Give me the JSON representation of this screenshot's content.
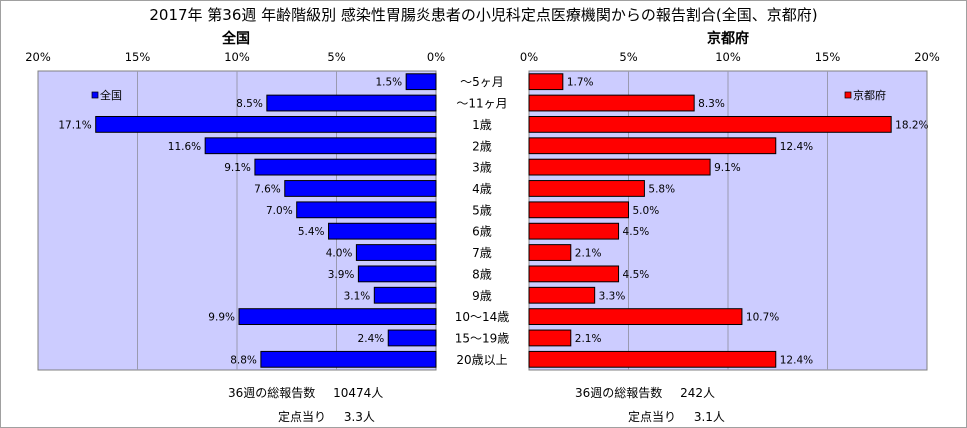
{
  "title": "2017年 第36週 年齢階級別 感染性胃腸炎患者の小児科定点医療機関からの報告割合(全国、京都府)",
  "colors": {
    "zenkoku": "#0000ff",
    "kyoto": "#ff0000",
    "plot_bg": "#ccccff",
    "edge": "#000000"
  },
  "chart_data": [
    {
      "type": "bar",
      "orientation": "horizontal",
      "title": "全国",
      "legend": "全国",
      "legend_position": "top-left",
      "xlim": [
        0,
        20
      ],
      "x_direction": "reversed",
      "ticks": [
        "20%",
        "15%",
        "10%",
        "5%",
        "0%"
      ],
      "categories": [
        "～5ヶ月",
        "～11ヶ月",
        "1歳",
        "2歳",
        "3歳",
        "4歳",
        "5歳",
        "6歳",
        "7歳",
        "8歳",
        "9歳",
        "10～14歳",
        "15～19歳",
        "20歳以上"
      ],
      "values": [
        1.5,
        8.5,
        17.1,
        11.6,
        9.1,
        7.6,
        7.0,
        5.4,
        4.0,
        3.9,
        3.1,
        9.9,
        2.4,
        8.8
      ],
      "labels": [
        "1.5%",
        "8.5%",
        "17.1%",
        "11.6%",
        "9.1%",
        "7.6%",
        "7.0%",
        "5.4%",
        "4.0%",
        "3.9%",
        "3.1%",
        "9.9%",
        "2.4%",
        "8.8%"
      ]
    },
    {
      "type": "bar",
      "orientation": "horizontal",
      "title": "京都府",
      "legend": "京都府",
      "legend_position": "top-right",
      "xlim": [
        0,
        20
      ],
      "ticks": [
        "0%",
        "5%",
        "10%",
        "15%",
        "20%"
      ],
      "categories": [
        "～5ヶ月",
        "～11ヶ月",
        "1歳",
        "2歳",
        "3歳",
        "4歳",
        "5歳",
        "6歳",
        "7歳",
        "8歳",
        "9歳",
        "10～14歳",
        "15～19歳",
        "20歳以上"
      ],
      "values": [
        1.7,
        8.3,
        18.2,
        12.4,
        9.1,
        5.8,
        5.0,
        4.5,
        2.1,
        4.5,
        3.3,
        10.7,
        2.1,
        12.4
      ],
      "labels": [
        "1.7%",
        "8.3%",
        "18.2%",
        "12.4%",
        "9.1%",
        "5.8%",
        "5.0%",
        "4.5%",
        "2.1%",
        "4.5%",
        "3.3%",
        "10.7%",
        "2.1%",
        "12.4%"
      ]
    }
  ],
  "footer": {
    "zenkoku": {
      "total_label": "36週の総報告数",
      "total_value": "10474人",
      "per_label": "定点当り",
      "per_value": "3.3人"
    },
    "kyoto": {
      "total_label": "36週の総報告数",
      "total_value": "242人",
      "per_label": "定点当り",
      "per_value": "3.1人"
    }
  }
}
